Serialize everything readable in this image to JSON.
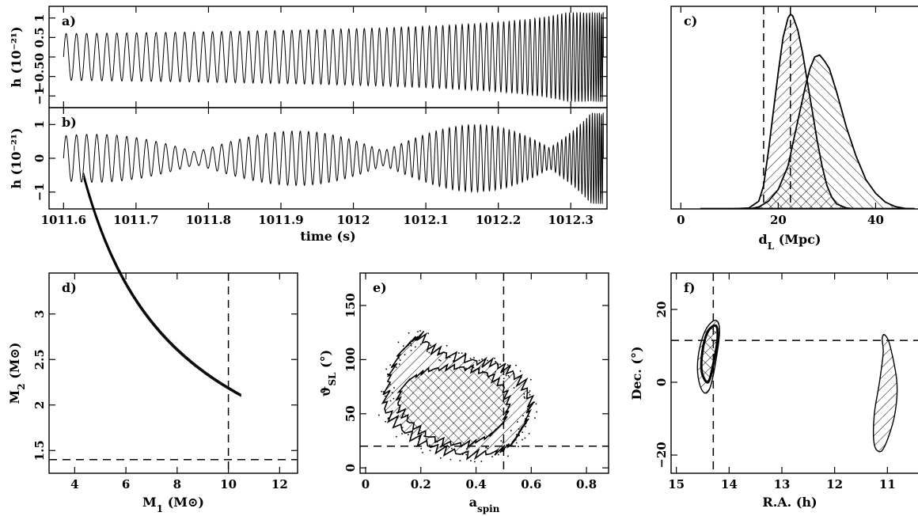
{
  "chart_data": [
    {
      "panel": "a",
      "type": "line",
      "label": "a)",
      "ylabel": "h (10⁻²¹)",
      "xlim": [
        1011.58,
        1012.35
      ],
      "ylim": [
        -1.3,
        1.3
      ],
      "yticks": [
        -1,
        -0.5,
        0,
        0.5,
        1
      ],
      "yticklabels": [
        "−1",
        "−0.5",
        "0",
        "0.5",
        "1"
      ],
      "series": [
        {
          "t_start": 1011.6,
          "t_end": 1012.345,
          "amp_start": 0.6,
          "amp_peak": 1.1,
          "cycles": 130
        }
      ]
    },
    {
      "panel": "b",
      "type": "line",
      "label": "b)",
      "xlabel": "time (s)",
      "ylabel": "h (10⁻²¹)",
      "xlim": [
        1011.58,
        1012.35
      ],
      "ylim": [
        -1.5,
        1.5
      ],
      "yticks": [
        -1,
        0,
        1
      ],
      "yticklabels": [
        "−1",
        "0",
        "1"
      ],
      "xticks": [
        1011.6,
        1011.7,
        1011.8,
        1011.9,
        1012,
        1012.1,
        1012.2,
        1012.3
      ],
      "xticklabels": [
        "1011.6",
        "1011.7",
        "1011.8",
        "1011.9",
        "1012",
        "1012.1",
        "1012.2",
        "1012.3"
      ],
      "series": [
        {
          "t_start": 1011.6,
          "t_end": 1012.345,
          "cycles": 130,
          "modulated": true
        }
      ]
    },
    {
      "panel": "c",
      "type": "area",
      "label": "c)",
      "xlabel": "d",
      "xlabel_sub": "L",
      "xlabel_unit": " (Mpc)",
      "xlim": [
        -2,
        50
      ],
      "ylim": [
        0,
        1.04
      ],
      "xticks": [
        0,
        20,
        40
      ],
      "xticklabels": [
        "0",
        "20",
        "40"
      ],
      "vlines": [
        17,
        22.5
      ],
      "series": [
        {
          "name": "dist1",
          "hatch": "forward",
          "points": [
            [
              4,
              0
            ],
            [
              10,
              0
            ],
            [
              14,
              0.005
            ],
            [
              16,
              0.04
            ],
            [
              17,
              0.12
            ],
            [
              18,
              0.3
            ],
            [
              19,
              0.5
            ],
            [
              20,
              0.7
            ],
            [
              21,
              0.88
            ],
            [
              22,
              0.98
            ],
            [
              22.5,
              1.0
            ],
            [
              23,
              0.99
            ],
            [
              24,
              0.92
            ],
            [
              25,
              0.8
            ],
            [
              26,
              0.65
            ],
            [
              27,
              0.5
            ],
            [
              28,
              0.35
            ],
            [
              29,
              0.22
            ],
            [
              30,
              0.12
            ],
            [
              31,
              0.06
            ],
            [
              32,
              0.025
            ],
            [
              34,
              0.005
            ],
            [
              36,
              0
            ]
          ]
        },
        {
          "name": "dist2",
          "hatch": "backward",
          "points": [
            [
              14,
              0
            ],
            [
              16,
              0.01
            ],
            [
              18,
              0.04
            ],
            [
              20,
              0.1
            ],
            [
              22,
              0.22
            ],
            [
              24,
              0.45
            ],
            [
              25.5,
              0.62
            ],
            [
              26.5,
              0.72
            ],
            [
              27.5,
              0.78
            ],
            [
              28.5,
              0.79
            ],
            [
              29.5,
              0.76
            ],
            [
              30.5,
              0.72
            ],
            [
              32,
              0.6
            ],
            [
              34,
              0.42
            ],
            [
              36,
              0.27
            ],
            [
              38,
              0.15
            ],
            [
              40,
              0.08
            ],
            [
              42,
              0.035
            ],
            [
              44,
              0.012
            ],
            [
              46,
              0.003
            ],
            [
              48,
              0
            ]
          ]
        }
      ]
    },
    {
      "panel": "d",
      "type": "line",
      "label": "d)",
      "xlabel": "M",
      "xlabel_sub": "1",
      "xlabel_unit": " (M⊙)",
      "ylabel": "M",
      "ylabel_sub": "2",
      "ylabel_unit": " (M⊙)",
      "xlim": [
        3,
        12.7
      ],
      "ylim": [
        1.25,
        3.45
      ],
      "xticks": [
        4,
        6,
        8,
        10,
        12
      ],
      "xticklabels": [
        "4",
        "6",
        "8",
        "10",
        "12"
      ],
      "yticks": [
        1.5,
        2,
        2.5,
        3
      ],
      "yticklabels": [
        "1.5",
        "2",
        "2.5",
        "3"
      ],
      "hline": 1.4,
      "vline": 10,
      "series": [
        {
          "name": "band",
          "x_from": 4.35,
          "x_to": 10.5,
          "chirp_const": 3.86
        }
      ]
    },
    {
      "panel": "e",
      "type": "scatter",
      "label": "e)",
      "xlabel": "a",
      "xlabel_sub": "spin",
      "ylabel": "ϑ",
      "ylabel_sub": "SL",
      "ylabel_unit": " (°)",
      "xlim": [
        -0.02,
        0.88
      ],
      "ylim": [
        -5,
        180
      ],
      "xticks": [
        0,
        0.2,
        0.4,
        0.6,
        0.8
      ],
      "xticklabels": [
        "0",
        "0.2",
        "0.4",
        "0.6",
        "0.8"
      ],
      "yticks": [
        0,
        50,
        100,
        150
      ],
      "yticklabels": [
        "0",
        "50",
        "100",
        "150"
      ],
      "hline": 20,
      "vline": 0.5,
      "series": [
        {
          "name": "outer",
          "outline": [
            [
              0.08,
              80
            ],
            [
              0.12,
              105
            ],
            [
              0.17,
              118
            ],
            [
              0.2,
              122
            ],
            [
              0.24,
              110
            ],
            [
              0.3,
              104
            ],
            [
              0.4,
              98
            ],
            [
              0.47,
              96
            ],
            [
              0.52,
              90
            ],
            [
              0.57,
              78
            ],
            [
              0.6,
              60
            ],
            [
              0.58,
              42
            ],
            [
              0.55,
              30
            ],
            [
              0.53,
              22
            ],
            [
              0.47,
              14
            ],
            [
              0.38,
              12
            ],
            [
              0.28,
              16
            ],
            [
              0.2,
              24
            ],
            [
              0.12,
              38
            ],
            [
              0.07,
              55
            ]
          ]
        },
        {
          "name": "inner",
          "outline": [
            [
              0.12,
              70
            ],
            [
              0.16,
              82
            ],
            [
              0.22,
              90
            ],
            [
              0.3,
              93
            ],
            [
              0.38,
              92
            ],
            [
              0.45,
              86
            ],
            [
              0.5,
              74
            ],
            [
              0.52,
              58
            ],
            [
              0.5,
              42
            ],
            [
              0.45,
              30
            ],
            [
              0.38,
              22
            ],
            [
              0.3,
              22
            ],
            [
              0.22,
              30
            ],
            [
              0.16,
              42
            ],
            [
              0.12,
              56
            ]
          ]
        }
      ]
    },
    {
      "panel": "f",
      "type": "scatter",
      "label": "f)",
      "xlabel": "R.A. (h)",
      "ylabel": "Dec. (°)",
      "xlim": [
        15.1,
        10.3
      ],
      "ylim": [
        -25,
        30
      ],
      "xticks": [
        15,
        14,
        13,
        12,
        11
      ],
      "xticklabels": [
        "15",
        "14",
        "13",
        "12",
        "11"
      ],
      "yticks": [
        -20,
        0,
        20
      ],
      "yticklabels": [
        "−20",
        "0",
        "20"
      ],
      "hline": 11.5,
      "vline": 14.3,
      "series": [
        {
          "name": "blob1",
          "outline": [
            [
              14.55,
              -1
            ],
            [
              14.6,
              4
            ],
            [
              14.55,
              10
            ],
            [
              14.42,
              15
            ],
            [
              14.25,
              17
            ],
            [
              14.18,
              14
            ],
            [
              14.25,
              6
            ],
            [
              14.35,
              -1
            ],
            [
              14.45,
              -3
            ]
          ]
        },
        {
          "name": "blob1-core",
          "outline": [
            [
              14.52,
              3
            ],
            [
              14.5,
              9
            ],
            [
              14.4,
              14
            ],
            [
              14.25,
              15.5
            ],
            [
              14.22,
              12
            ],
            [
              14.3,
              5
            ],
            [
              14.4,
              0
            ]
          ]
        },
        {
          "name": "blob2",
          "outline": [
            [
              11.05,
              13
            ],
            [
              10.95,
              10
            ],
            [
              10.82,
              0
            ],
            [
              10.85,
              -8
            ],
            [
              10.98,
              -15
            ],
            [
              11.12,
              -19
            ],
            [
              11.25,
              -17
            ],
            [
              11.25,
              -9
            ],
            [
              11.15,
              0
            ],
            [
              11.08,
              8
            ],
            [
              11.1,
              12
            ]
          ]
        }
      ]
    }
  ]
}
